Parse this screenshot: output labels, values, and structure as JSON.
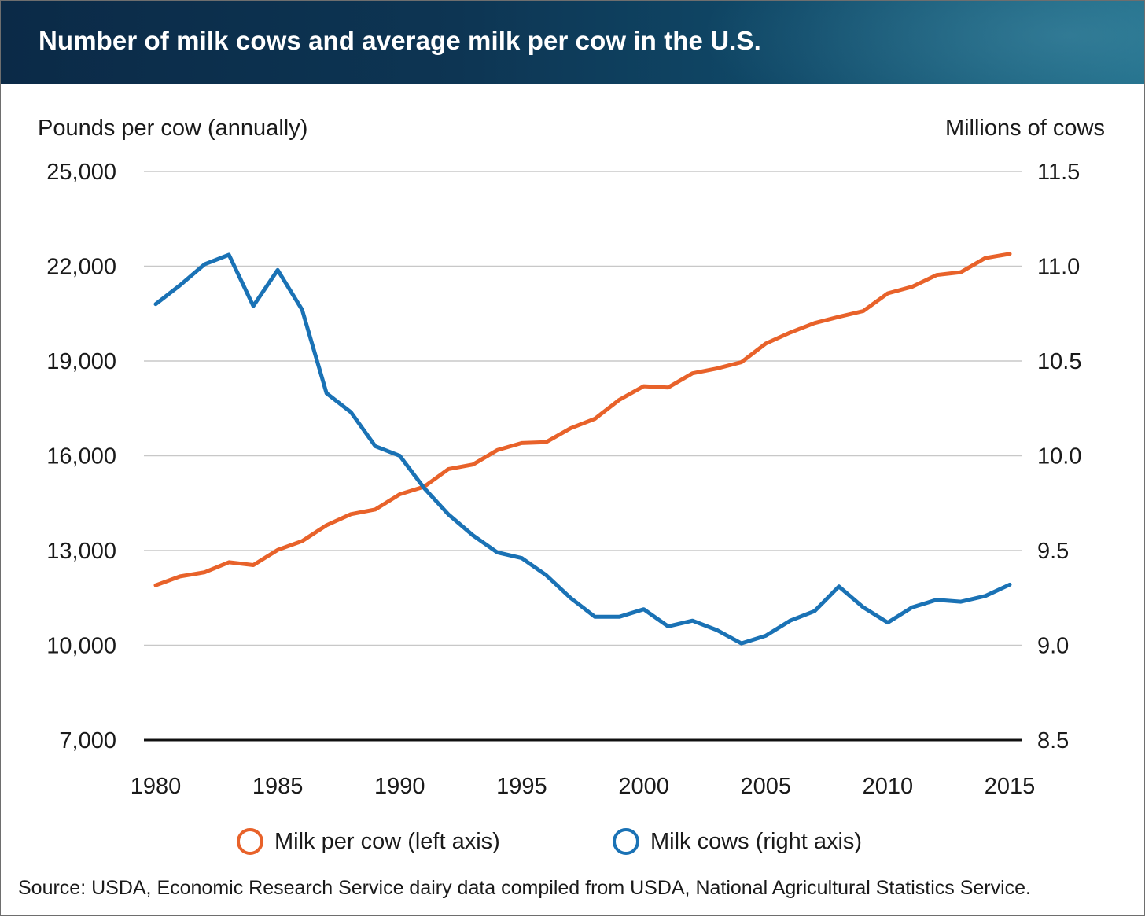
{
  "header": {
    "title": "Number of milk cows and average milk per cow in the U.S."
  },
  "chart_data": {
    "type": "line",
    "x": [
      1980,
      1981,
      1982,
      1983,
      1984,
      1985,
      1986,
      1987,
      1988,
      1989,
      1990,
      1991,
      1992,
      1993,
      1994,
      1995,
      1996,
      1997,
      1998,
      1999,
      2000,
      2001,
      2002,
      2003,
      2004,
      2005,
      2006,
      2007,
      2008,
      2009,
      2010,
      2011,
      2012,
      2013,
      2014,
      2015
    ],
    "x_ticks": [
      "1980",
      "1985",
      "1990",
      "1995",
      "2000",
      "2005",
      "2010",
      "2015"
    ],
    "y_left": {
      "label": "Pounds per cow (annually)",
      "ticks": [
        "25,000",
        "22,000",
        "19,000",
        "16,000",
        "13,000",
        "10,000",
        "7,000"
      ],
      "range": [
        7000,
        25000
      ]
    },
    "y_right": {
      "label": "Millions of cows",
      "ticks": [
        "11.5",
        "11.0",
        "10.5",
        "10.0",
        "9.5",
        "9.0",
        "8.5"
      ],
      "range": [
        8.5,
        11.5
      ]
    },
    "grid": true,
    "legend_position": "bottom",
    "series": [
      {
        "name": "Milk per cow (left axis)",
        "axis": "left",
        "color": "#e8622a",
        "values": [
          11900,
          12180,
          12310,
          12630,
          12540,
          13020,
          13300,
          13800,
          14150,
          14300,
          14780,
          15020,
          15580,
          15720,
          16180,
          16400,
          16430,
          16870,
          17170,
          17770,
          18200,
          18160,
          18610,
          18760,
          18960,
          19550,
          19900,
          20200,
          20400,
          20580,
          21140,
          21350,
          21720,
          21810,
          22260,
          22390
        ]
      },
      {
        "name": "Milk cows (right axis)",
        "axis": "right",
        "color": "#1a72b5",
        "values": [
          10.8,
          10.9,
          11.01,
          11.06,
          10.79,
          10.98,
          10.77,
          10.33,
          10.23,
          10.05,
          10.0,
          9.83,
          9.69,
          9.58,
          9.49,
          9.46,
          9.37,
          9.25,
          9.15,
          9.15,
          9.19,
          9.1,
          9.13,
          9.08,
          9.01,
          9.05,
          9.13,
          9.18,
          9.31,
          9.2,
          9.12,
          9.2,
          9.24,
          9.23,
          9.26,
          9.32
        ]
      }
    ]
  },
  "source": "Source: USDA, Economic Research Service dairy data compiled from USDA, National Agricultural Statistics Service."
}
